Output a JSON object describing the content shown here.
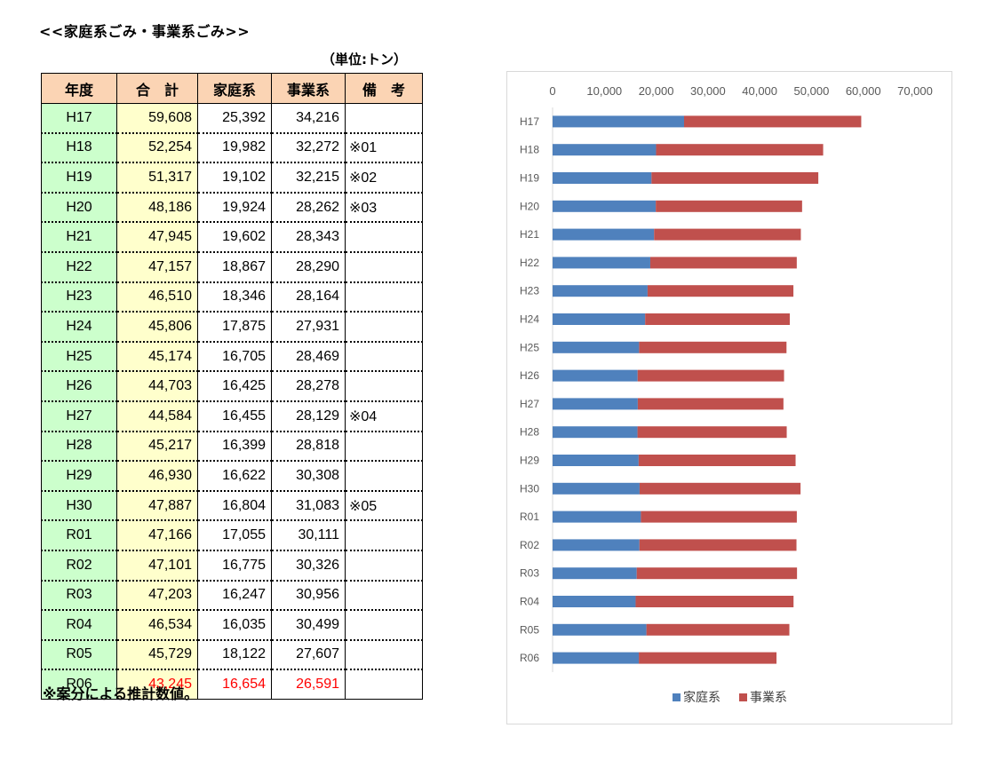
{
  "page": {
    "title": "<<家庭系ごみ・事業系ごみ>>",
    "unit": "（単位:トン）",
    "footnote": "※案分による推計数値。"
  },
  "table": {
    "headers": [
      "年度",
      "合　計",
      "家庭系",
      "事業系",
      "備　考"
    ],
    "rows": [
      {
        "year": "H17",
        "total": "59,608",
        "household": "25,392",
        "business": "34,216",
        "note": ""
      },
      {
        "year": "H18",
        "total": "52,254",
        "household": "19,982",
        "business": "32,272",
        "note": "※01"
      },
      {
        "year": "H19",
        "total": "51,317",
        "household": "19,102",
        "business": "32,215",
        "note": "※02"
      },
      {
        "year": "H20",
        "total": "48,186",
        "household": "19,924",
        "business": "28,262",
        "note": "※03"
      },
      {
        "year": "H21",
        "total": "47,945",
        "household": "19,602",
        "business": "28,343",
        "note": ""
      },
      {
        "year": "H22",
        "total": "47,157",
        "household": "18,867",
        "business": "28,290",
        "note": ""
      },
      {
        "year": "H23",
        "total": "46,510",
        "household": "18,346",
        "business": "28,164",
        "note": ""
      },
      {
        "year": "H24",
        "total": "45,806",
        "household": "17,875",
        "business": "27,931",
        "note": ""
      },
      {
        "year": "H25",
        "total": "45,174",
        "household": "16,705",
        "business": "28,469",
        "note": ""
      },
      {
        "year": "H26",
        "total": "44,703",
        "household": "16,425",
        "business": "28,278",
        "note": ""
      },
      {
        "year": "H27",
        "total": "44,584",
        "household": "16,455",
        "business": "28,129",
        "note": "※04"
      },
      {
        "year": "H28",
        "total": "45,217",
        "household": "16,399",
        "business": "28,818",
        "note": ""
      },
      {
        "year": "H29",
        "total": "46,930",
        "household": "16,622",
        "business": "30,308",
        "note": ""
      },
      {
        "year": "H30",
        "total": "47,887",
        "household": "16,804",
        "business": "31,083",
        "note": "※05"
      },
      {
        "year": "R01",
        "total": "47,166",
        "household": "17,055",
        "business": "30,111",
        "note": ""
      },
      {
        "year": "R02",
        "total": "47,101",
        "household": "16,775",
        "business": "30,326",
        "note": ""
      },
      {
        "year": "R03",
        "total": "47,203",
        "household": "16,247",
        "business": "30,956",
        "note": ""
      },
      {
        "year": "R04",
        "total": "46,534",
        "household": "16,035",
        "business": "30,499",
        "note": ""
      },
      {
        "year": "R05",
        "total": "45,729",
        "household": "18,122",
        "business": "27,607",
        "note": ""
      },
      {
        "year": "R06",
        "total": "43,245",
        "household": "16,654",
        "business": "26,591",
        "note": ""
      }
    ]
  },
  "colors": {
    "header_bg": "#fbd4b4",
    "year_bg": "#ccffcc",
    "total_bg": "#ffffcc",
    "highlight_text": "#ff0000",
    "household": "#4f81bd",
    "business": "#c0504d"
  },
  "chart_data": {
    "type": "bar",
    "orientation": "horizontal",
    "stacked": true,
    "categories": [
      "H17",
      "H18",
      "H19",
      "H20",
      "H21",
      "H22",
      "H23",
      "H24",
      "H25",
      "H26",
      "H27",
      "H28",
      "H29",
      "H30",
      "R01",
      "R02",
      "R03",
      "R04",
      "R05",
      "R06"
    ],
    "series": [
      {
        "name": "家庭系",
        "color": "#4f81bd",
        "values": [
          25392,
          19982,
          19102,
          19924,
          19602,
          18867,
          18346,
          17875,
          16705,
          16425,
          16455,
          16399,
          16622,
          16804,
          17055,
          16775,
          16247,
          16035,
          18122,
          16654
        ]
      },
      {
        "name": "事業系",
        "color": "#c0504d",
        "values": [
          34216,
          32272,
          32215,
          28262,
          28343,
          28290,
          28164,
          27931,
          28469,
          28278,
          28129,
          28818,
          30308,
          31083,
          30111,
          30326,
          30956,
          30499,
          27607,
          26591
        ]
      }
    ],
    "xlim": [
      0,
      70000
    ],
    "x_ticks": [
      0,
      10000,
      20000,
      30000,
      40000,
      50000,
      60000,
      70000
    ],
    "x_tick_labels": [
      "0",
      "10,000",
      "20,000",
      "30,000",
      "40,000",
      "50,000",
      "60,000",
      "70,000"
    ],
    "axis_position": "top",
    "grid": false,
    "legend_position": "bottom"
  }
}
